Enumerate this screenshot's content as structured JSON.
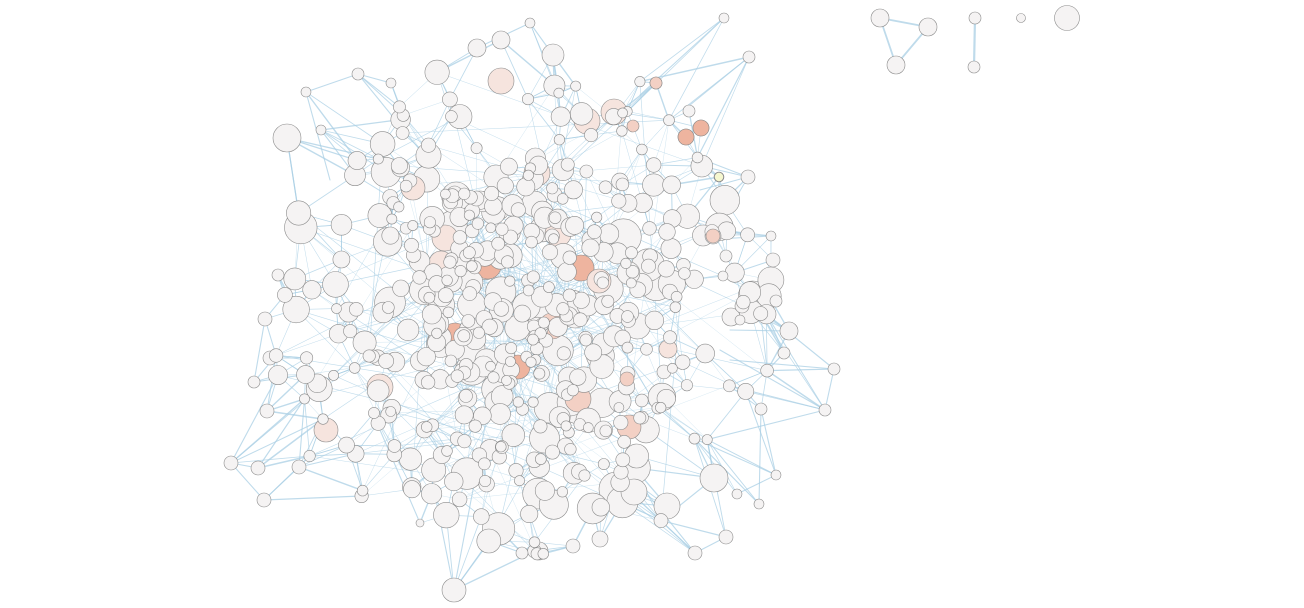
{
  "graph": {
    "colors": {
      "background": "#ffffff",
      "edge": "#a9cfe4",
      "node_stroke": "#8c8c8c",
      "node_default": "#f5f3f3",
      "node_warm_1": "#f6e4de",
      "node_warm_2": "#f3d0c4",
      "node_warm_3": "#eeb49f",
      "node_highlight": "#f6f7cf"
    },
    "node_color_scale": [
      0.0,
      0.3,
      0.6,
      1.0
    ],
    "components": [
      {
        "id": "main-cluster",
        "approx_node_count": 560
      },
      {
        "id": "triangle-component",
        "node_count": 3
      },
      {
        "id": "pair-component",
        "node_count": 2
      },
      {
        "id": "isolated-node-small",
        "node_count": 1
      },
      {
        "id": "isolated-node-large",
        "node_count": 1
      }
    ]
  }
}
